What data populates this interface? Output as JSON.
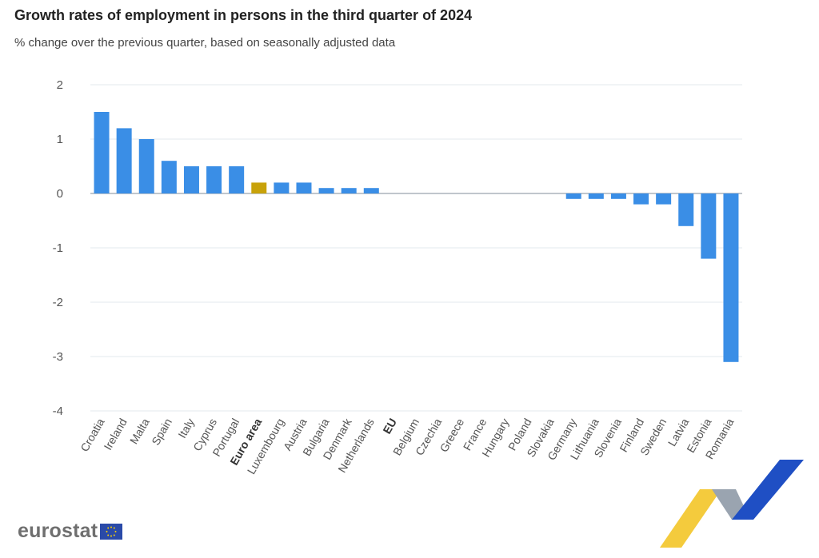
{
  "title": "Growth rates of employment in persons in the third quarter of 2024",
  "subtitle": "% change over the previous quarter, based on seasonally adjusted data",
  "brand": {
    "logo_text": "eurostat",
    "colors": {
      "bar": "#3a8ee6",
      "highlight": "#c8a20a",
      "grid": "#e3e8ee",
      "text": "#555555"
    }
  },
  "chart_data": {
    "type": "bar",
    "categories": [
      "Croatia",
      "Ireland",
      "Malta",
      "Spain",
      "Italy",
      "Cyprus",
      "Portugal",
      "Euro area",
      "Luxembourg",
      "Austria",
      "Bulgaria",
      "Denmark",
      "Netherlands",
      "EU",
      "Belgium",
      "Czechia",
      "Greece",
      "France",
      "Hungary",
      "Poland",
      "Slovakia",
      "Germany",
      "Lithuania",
      "Slovenia",
      "Finland",
      "Sweden",
      "Latvia",
      "Estonia",
      "Romania"
    ],
    "values": [
      1.5,
      1.2,
      1.0,
      0.6,
      0.5,
      0.5,
      0.5,
      0.2,
      0.2,
      0.2,
      0.1,
      0.1,
      0.1,
      0.0,
      0.0,
      0.0,
      0.0,
      0.0,
      0.0,
      0.0,
      0.0,
      -0.1,
      -0.1,
      -0.1,
      -0.2,
      -0.2,
      -0.6,
      -1.2,
      -3.1
    ],
    "highlighted": [
      "Euro area"
    ],
    "bold_labels": [
      "Euro area",
      "EU"
    ],
    "ylim": [
      -4,
      2
    ],
    "yticks": [
      2,
      1,
      0,
      -1,
      -2,
      -3,
      -4
    ],
    "grid": true,
    "xlabel": "",
    "ylabel": ""
  }
}
